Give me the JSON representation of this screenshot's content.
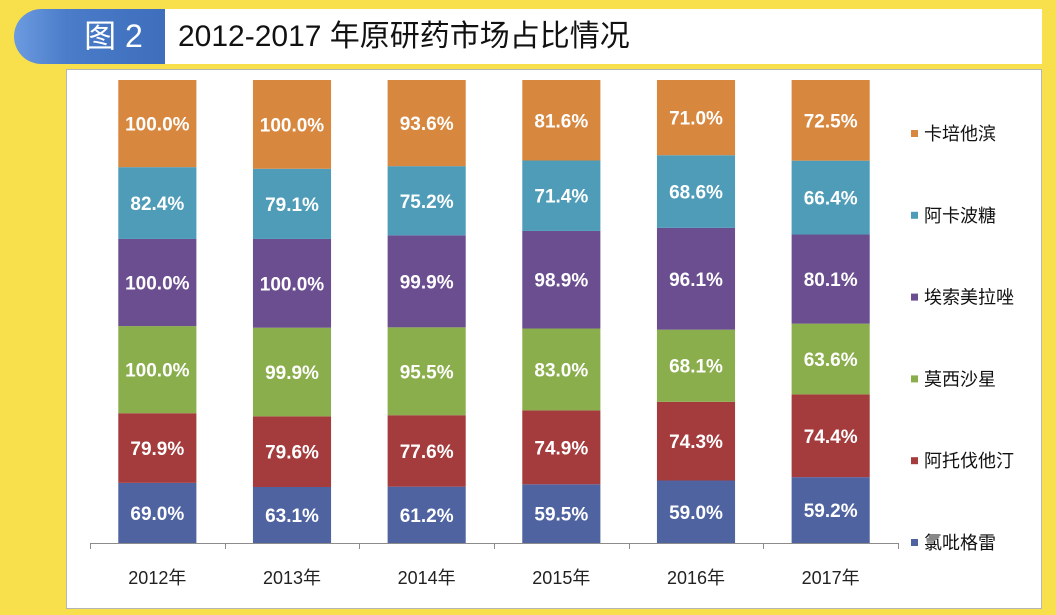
{
  "header": {
    "badge": "图 2"
  },
  "colors": {
    "background": "#F8DF4C",
    "badge": "#4A7CC9",
    "panel": "#FFFFFF"
  },
  "chart_data": {
    "type": "bar",
    "stacking": "percent",
    "title": "2012-2017 年原研药市场占比情况",
    "categories": [
      "2012年",
      "2013年",
      "2014年",
      "2015年",
      "2016年",
      "2017年"
    ],
    "unit": "%",
    "series": [
      {
        "name": "氯吡格雷",
        "color": "#4F63A1",
        "values": [
          69.0,
          63.1,
          61.2,
          59.5,
          59.0,
          59.2
        ]
      },
      {
        "name": "阿托伐他汀",
        "color": "#A43B3C",
        "values": [
          79.9,
          79.6,
          77.6,
          74.9,
          74.3,
          74.4
        ]
      },
      {
        "name": "莫西沙星",
        "color": "#8BAE4C",
        "values": [
          100.0,
          99.9,
          95.5,
          83.0,
          68.1,
          63.6
        ]
      },
      {
        "name": "埃索美拉唑",
        "color": "#6B4E90",
        "values": [
          100.0,
          100.0,
          99.9,
          98.9,
          96.1,
          80.1
        ]
      },
      {
        "name": "阿卡波糖",
        "color": "#4E9CB8",
        "values": [
          82.4,
          79.1,
          75.2,
          71.4,
          68.6,
          66.4
        ]
      },
      {
        "name": "卡培他滨",
        "color": "#D8873F",
        "values": [
          100.0,
          100.0,
          93.6,
          81.6,
          71.0,
          72.5
        ]
      }
    ],
    "legend": "right",
    "data_labels": true,
    "grid": false
  }
}
